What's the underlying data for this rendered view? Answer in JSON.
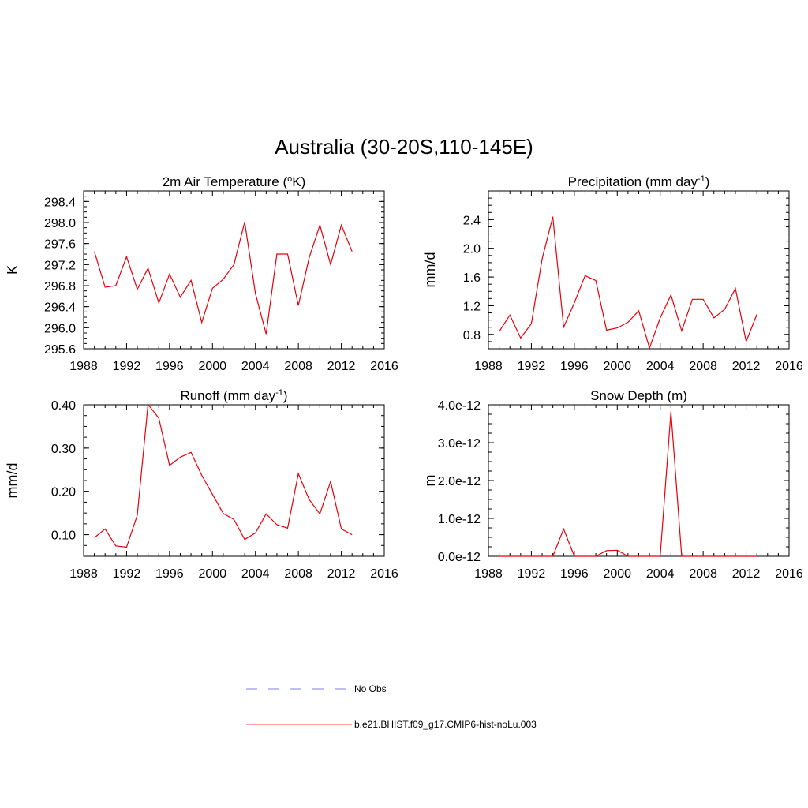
{
  "figure": {
    "title": "Australia (30-20S,110-145E)"
  },
  "legend": {
    "entries": [
      {
        "label": "No Obs",
        "color": "#9999ee",
        "style": "dashed"
      },
      {
        "label": "b.e21.BHIST.f09_g17.CMIP6-hist-noLu.003",
        "color": "#ff6b6b",
        "style": "solid"
      }
    ]
  },
  "colors": {
    "series": "#e8000a"
  },
  "chart_data": [
    {
      "type": "line",
      "title": "2m Air Temperature (",
      "title_sup": "o",
      "title_after": "K)",
      "ylabel": "K",
      "xlabel": "",
      "xlim": [
        1988,
        2016
      ],
      "xticks": [
        1988,
        1992,
        1996,
        2000,
        2004,
        2008,
        2012,
        2016
      ],
      "ylim": [
        295.6,
        298.6
      ],
      "yticks": [
        295.6,
        296.0,
        296.4,
        296.8,
        297.2,
        297.6,
        298.0,
        298.4
      ],
      "ytick_labels": [
        "295.6",
        "296.0",
        "296.4",
        "296.8",
        "297.2",
        "297.6",
        "298.0",
        "298.4"
      ],
      "series": [
        {
          "name": "b.e21.BHIST.f09_g17.CMIP6-hist-noLu.003",
          "x": [
            1989,
            1990,
            1991,
            1992,
            1993,
            1994,
            1995,
            1996,
            1997,
            1998,
            1999,
            2000,
            2001,
            2002,
            2003,
            2004,
            2005,
            2006,
            2007,
            2008,
            2009,
            2010,
            2011,
            2012,
            2013
          ],
          "values": [
            297.45,
            296.77,
            296.8,
            297.35,
            296.73,
            297.13,
            296.47,
            297.02,
            296.58,
            296.9,
            296.1,
            296.75,
            296.92,
            297.2,
            298.01,
            296.65,
            295.88,
            297.4,
            297.4,
            296.42,
            297.33,
            297.95,
            297.2,
            297.95,
            297.45
          ]
        }
      ]
    },
    {
      "type": "line",
      "title": "Precipitation (mm day",
      "title_sup": "-1",
      "title_after": ")",
      "ylabel": "mm/d",
      "xlabel": "",
      "xlim": [
        1988,
        2016
      ],
      "xticks": [
        1988,
        1992,
        1996,
        2000,
        2004,
        2008,
        2012,
        2016
      ],
      "ylim": [
        0.6,
        2.8
      ],
      "yticks": [
        0.8,
        1.2,
        1.6,
        2.0,
        2.4
      ],
      "ytick_labels": [
        "0.8",
        "1.2",
        "1.6",
        "2.0",
        "2.4"
      ],
      "series": [
        {
          "name": "b.e21.BHIST.f09_g17.CMIP6-hist-noLu.003",
          "x": [
            1989,
            1990,
            1991,
            1992,
            1993,
            1994,
            1995,
            1996,
            1997,
            1998,
            1999,
            2000,
            2001,
            2002,
            2003,
            2004,
            2005,
            2006,
            2007,
            2008,
            2009,
            2010,
            2011,
            2012,
            2013
          ],
          "values": [
            0.84,
            1.07,
            0.75,
            0.95,
            1.85,
            2.44,
            0.9,
            1.24,
            1.62,
            1.55,
            0.86,
            0.89,
            0.97,
            1.13,
            0.61,
            1.03,
            1.35,
            0.85,
            1.29,
            1.29,
            1.03,
            1.15,
            1.44,
            0.7,
            1.08
          ]
        }
      ]
    },
    {
      "type": "line",
      "title": "Runoff (mm day",
      "title_sup": "-1",
      "title_after": ")",
      "ylabel": "mm/d",
      "xlabel": "",
      "xlim": [
        1988,
        2016
      ],
      "xticks": [
        1988,
        1992,
        1996,
        2000,
        2004,
        2008,
        2012,
        2016
      ],
      "ylim": [
        0.05,
        0.4
      ],
      "yticks": [
        0.1,
        0.2,
        0.3,
        0.4
      ],
      "ytick_labels": [
        "0.10",
        "0.20",
        "0.30",
        "0.40"
      ],
      "series": [
        {
          "name": "b.e21.BHIST.f09_g17.CMIP6-hist-noLu.003",
          "x": [
            1989,
            1990,
            1991,
            1992,
            1993,
            1994,
            1995,
            1996,
            1997,
            1998,
            1999,
            2000,
            2001,
            2002,
            2003,
            2004,
            2005,
            2006,
            2007,
            2008,
            2009,
            2010,
            2011,
            2012,
            2013
          ],
          "values": [
            0.093,
            0.113,
            0.074,
            0.071,
            0.145,
            0.401,
            0.369,
            0.26,
            0.279,
            0.29,
            0.237,
            0.193,
            0.149,
            0.135,
            0.089,
            0.104,
            0.148,
            0.123,
            0.115,
            0.241,
            0.181,
            0.148,
            0.223,
            0.113,
            0.1
          ]
        }
      ]
    },
    {
      "type": "line",
      "title": "Snow Depth (m)",
      "title_sup": "",
      "title_after": "",
      "ylabel": "m",
      "xlabel": "",
      "xlim": [
        1988,
        2016
      ],
      "xticks": [
        1988,
        1992,
        1996,
        2000,
        2004,
        2008,
        2012,
        2016
      ],
      "ylim": [
        0,
        4.0
      ],
      "y_units_note": "e-12",
      "yticks": [
        0,
        1.0,
        2.0,
        3.0,
        4.0
      ],
      "ytick_labels": [
        "0.0e-12",
        "1.0e-12",
        "2.0e-12",
        "3.0e-12",
        "4.0e-12"
      ],
      "series": [
        {
          "name": "b.e21.BHIST.f09_g17.CMIP6-hist-noLu.003",
          "x": [
            1989,
            1990,
            1991,
            1992,
            1993,
            1994,
            1995,
            1996,
            1997,
            1998,
            1999,
            2000,
            2001,
            2002,
            2003,
            2004,
            2005,
            2006,
            2007,
            2008,
            2009,
            2010,
            2011,
            2012,
            2013
          ],
          "values": [
            0,
            0,
            0,
            0,
            0,
            0,
            0.72,
            0,
            0,
            0,
            0.15,
            0.16,
            0,
            0,
            0,
            0,
            3.82,
            0,
            0,
            0,
            0,
            0,
            0,
            0,
            0
          ]
        }
      ]
    }
  ]
}
